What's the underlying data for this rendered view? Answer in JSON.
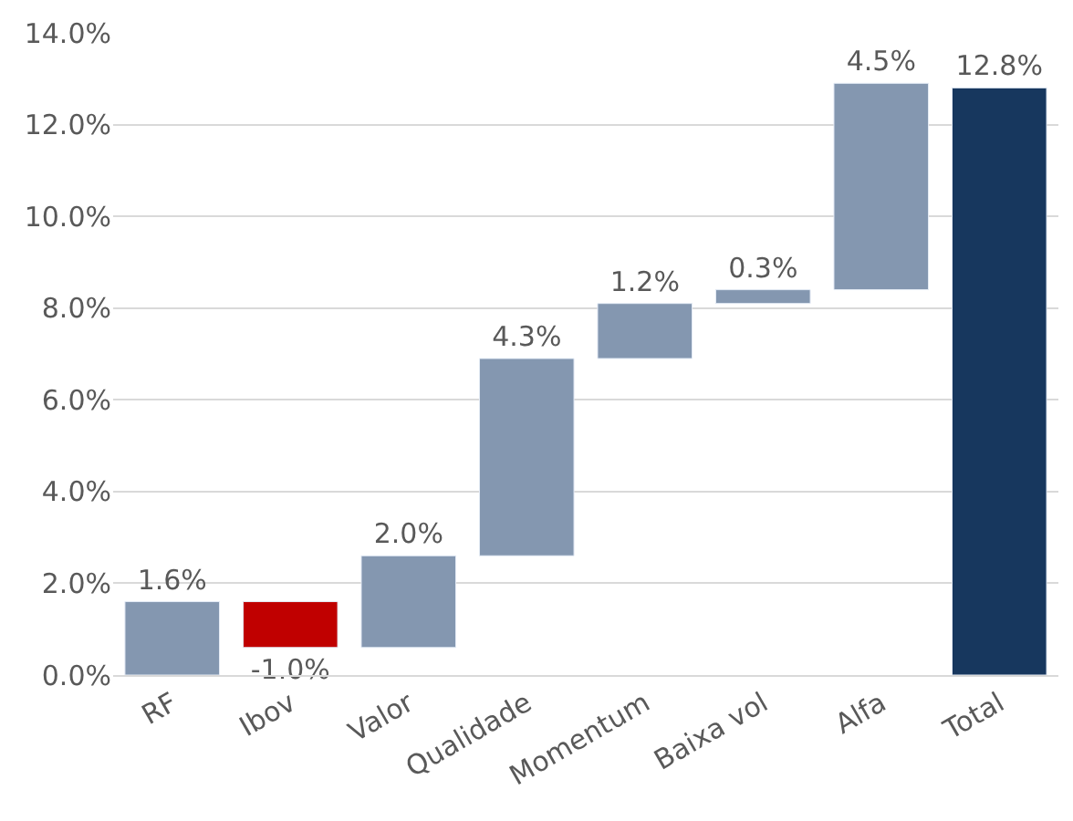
{
  "chart_data": {
    "type": "bar",
    "categories": [
      "RF",
      "Ibov",
      "Valor",
      "Qualidade",
      "Momentum",
      "Baixa vol",
      "Alfa",
      "Total"
    ],
    "values": [
      1.6,
      -1.0,
      2.0,
      4.3,
      1.2,
      0.3,
      4.5,
      12.8
    ],
    "base": [
      0,
      1.6,
      0.6,
      2.6,
      6.9,
      8.1,
      8.4,
      0
    ],
    "colors": [
      "#8497b0",
      "#c00000",
      "#8497b0",
      "#8497b0",
      "#8497b0",
      "#8497b0",
      "#8497b0",
      "#17375e"
    ],
    "value_labels": [
      "1.6%",
      "-1.0%",
      "2.0%",
      "4.3%",
      "1.2%",
      "0.3%",
      "4.5%",
      "12.8%"
    ],
    "ylim": [
      0,
      14
    ],
    "yticks": [
      {
        "value": 0,
        "label": "0.0%"
      },
      {
        "value": 2,
        "label": "2.0%"
      },
      {
        "value": 4,
        "label": "4.0%"
      },
      {
        "value": 6,
        "label": "6.0%"
      },
      {
        "value": 8,
        "label": "8.0%"
      },
      {
        "value": 10,
        "label": "10.0%"
      },
      {
        "value": 12,
        "label": "12.0%"
      },
      {
        "value": 14,
        "label": "14.0%"
      }
    ],
    "grid": "y",
    "legend": false
  }
}
